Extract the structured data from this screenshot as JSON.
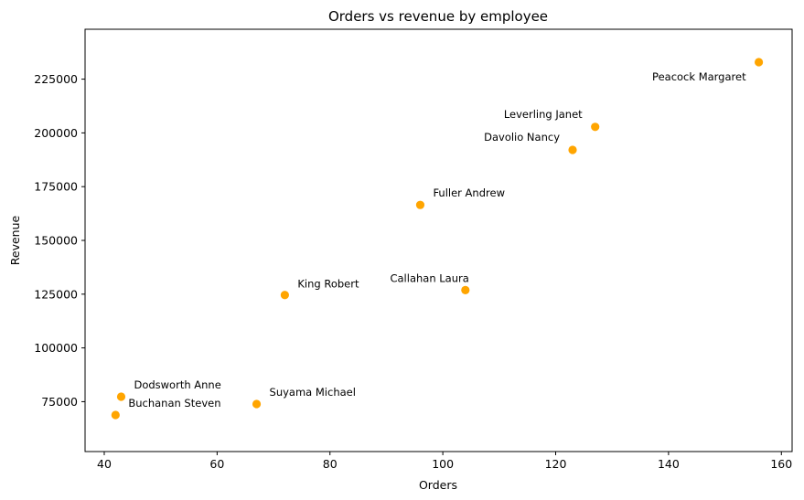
{
  "chart_data": {
    "type": "scatter",
    "title": "Orders vs revenue by employee",
    "xlabel": "Orders",
    "ylabel": "Revenue",
    "xlim": [
      36.6,
      161.9
    ],
    "ylim": [
      51800,
      248200
    ],
    "xticks": [
      40,
      60,
      80,
      100,
      120,
      140,
      160
    ],
    "yticks": [
      75000,
      100000,
      125000,
      150000,
      175000,
      200000,
      225000
    ],
    "grid": false,
    "marker_color": "#FFA500",
    "points": [
      {
        "label": "Peacock Margaret",
        "x": 156,
        "y": 232900
      },
      {
        "label": "Leverling Janet",
        "x": 127,
        "y": 202800
      },
      {
        "label": "Davolio Nancy",
        "x": 123,
        "y": 192100
      },
      {
        "label": "Fuller Andrew",
        "x": 96,
        "y": 166500
      },
      {
        "label": "Callahan Laura",
        "x": 104,
        "y": 126900
      },
      {
        "label": "King Robert",
        "x": 72,
        "y": 124600
      },
      {
        "label": "Dodsworth Anne",
        "x": 43,
        "y": 77300
      },
      {
        "label": "Suyama Michael",
        "x": 67,
        "y": 73900
      },
      {
        "label": "Buchanan Steven",
        "x": 42,
        "y": 68800
      }
    ]
  }
}
